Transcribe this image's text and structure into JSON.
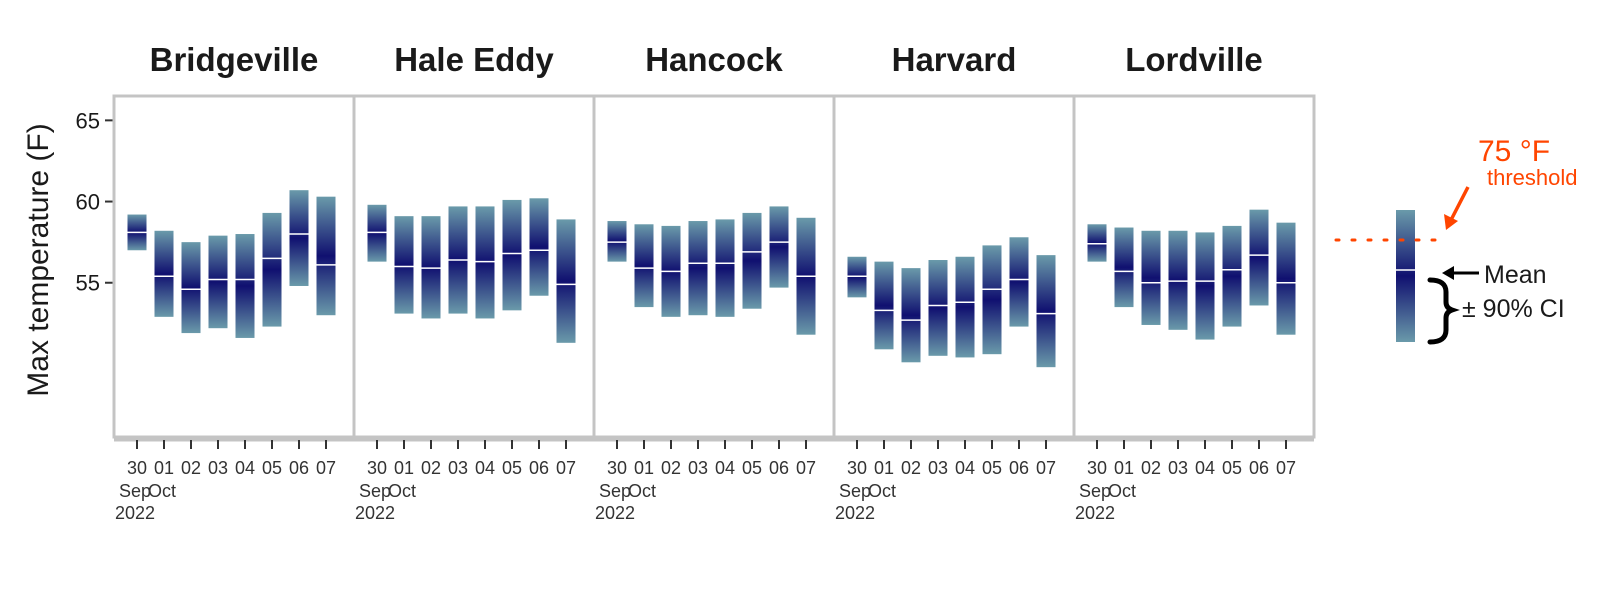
{
  "chart_data": {
    "type": "interval",
    "ylabel": "Max temperature (F)",
    "ylim": [
      45.5,
      66.5
    ],
    "yticks": [
      55,
      60,
      65
    ],
    "x_ticks": [
      {
        "day": "30",
        "month": "Sep",
        "year": "2022"
      },
      {
        "day": "01",
        "month": "Oct",
        "year": ""
      },
      {
        "day": "02",
        "month": "",
        "year": ""
      },
      {
        "day": "03",
        "month": "",
        "year": ""
      },
      {
        "day": "04",
        "month": "",
        "year": ""
      },
      {
        "day": "05",
        "month": "",
        "year": ""
      },
      {
        "day": "06",
        "month": "",
        "year": ""
      },
      {
        "day": "07",
        "month": "",
        "year": ""
      }
    ],
    "facets": [
      {
        "name": "Bridgeville",
        "mean": [
          58.1,
          55.4,
          54.6,
          55.2,
          55.2,
          56.5,
          58.0,
          56.1
        ],
        "lower": [
          57.0,
          52.9,
          51.9,
          52.2,
          51.6,
          52.3,
          54.8,
          53.0
        ],
        "upper": [
          59.2,
          58.2,
          57.5,
          57.9,
          58.0,
          59.3,
          60.7,
          60.3
        ]
      },
      {
        "name": "Hale Eddy",
        "mean": [
          58.1,
          56.0,
          55.9,
          56.4,
          56.3,
          56.8,
          57.0,
          54.9
        ],
        "lower": [
          56.3,
          53.1,
          52.8,
          53.1,
          52.8,
          53.3,
          54.2,
          51.3
        ],
        "upper": [
          59.8,
          59.1,
          59.1,
          59.7,
          59.7,
          60.1,
          60.2,
          58.9
        ]
      },
      {
        "name": "Hancock",
        "mean": [
          57.5,
          55.9,
          55.7,
          56.2,
          56.2,
          56.9,
          57.5,
          55.4
        ],
        "lower": [
          56.3,
          53.5,
          52.9,
          53.0,
          52.9,
          53.4,
          54.7,
          51.8
        ],
        "upper": [
          58.8,
          58.6,
          58.5,
          58.8,
          58.9,
          59.3,
          59.7,
          59.0
        ]
      },
      {
        "name": "Harvard",
        "mean": [
          55.4,
          53.3,
          52.7,
          53.6,
          53.8,
          54.6,
          55.2,
          53.1
        ],
        "lower": [
          54.1,
          50.9,
          50.1,
          50.5,
          50.4,
          50.6,
          52.3,
          49.8
        ],
        "upper": [
          56.6,
          56.3,
          55.9,
          56.4,
          56.6,
          57.3,
          57.8,
          56.7
        ]
      },
      {
        "name": "Lordville",
        "mean": [
          57.4,
          55.7,
          55.0,
          55.1,
          55.1,
          55.8,
          56.7,
          55.0
        ],
        "lower": [
          56.3,
          53.5,
          52.4,
          52.1,
          51.5,
          52.3,
          53.6,
          51.8
        ],
        "upper": [
          58.6,
          58.4,
          58.2,
          58.2,
          58.1,
          58.5,
          59.5,
          58.7
        ]
      }
    ],
    "colors": {
      "ribbon_light": "#6a9aaa",
      "ribbon_dark": "#101070",
      "mean_line": "#ffffff",
      "panel_border": "#c4c4c4",
      "threshold": "#ff4500",
      "legend_arrow": "#000000"
    },
    "legend": {
      "threshold_value": "75 °F",
      "threshold_word": "threshold",
      "mean_label": "Mean",
      "ci_label": "± 90% CI"
    }
  }
}
